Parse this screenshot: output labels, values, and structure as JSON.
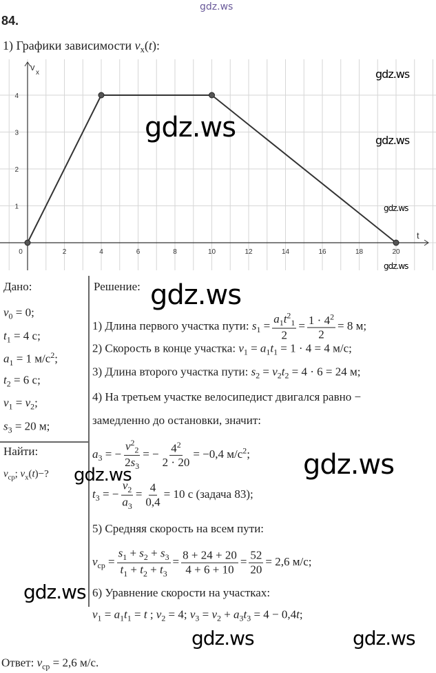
{
  "header": {
    "site": "gdz.ws",
    "number": "84.",
    "subtitle": [
      [
        "t",
        "1) Графики зависимости "
      ],
      [
        "i",
        "v"
      ],
      [
        "sub",
        "x"
      ],
      [
        "t",
        "("
      ],
      [
        "i",
        "t"
      ],
      [
        "t",
        ")"
      ],
      [
        "t",
        ":"
      ]
    ]
  },
  "chart_data": {
    "type": "line",
    "xlabel": "t",
    "ylabel": "v",
    "ylabel_sub": "x",
    "x": [
      0,
      4,
      10,
      20
    ],
    "y": [
      0,
      4,
      4,
      0
    ],
    "xlim": [
      0,
      21
    ],
    "ylim": [
      -0.7,
      4.9
    ],
    "x_ticks": [
      "0",
      "2",
      "4",
      "6",
      "8",
      "10",
      "12",
      "14",
      "16",
      "18",
      "20"
    ],
    "y_ticks": [
      "1",
      "2",
      "3",
      "4"
    ],
    "grid": true,
    "line_color": "#333333"
  },
  "given": {
    "title": "Дано:",
    "lines": [
      [
        [
          "i",
          "v"
        ],
        [
          "sub",
          "0"
        ],
        [
          "t",
          " = 0;"
        ]
      ],
      [
        [
          "i",
          "t"
        ],
        [
          "sub",
          "1"
        ],
        [
          "t",
          " = 4 с;"
        ]
      ],
      [
        [
          "i",
          "a"
        ],
        [
          "sub",
          "1"
        ],
        [
          "t",
          " = 1 м/с"
        ],
        [
          "sup",
          "2"
        ],
        [
          "t",
          ";"
        ]
      ],
      [
        [
          "i",
          "t"
        ],
        [
          "sub",
          "2"
        ],
        [
          "t",
          " = 6 с;"
        ]
      ],
      [
        [
          "i",
          "v"
        ],
        [
          "sub",
          "1"
        ],
        [
          "t",
          " = "
        ],
        [
          "i",
          "v"
        ],
        [
          "sub",
          "2"
        ],
        [
          "t",
          ";"
        ]
      ],
      [
        [
          "i",
          "s"
        ],
        [
          "sub",
          "3"
        ],
        [
          "t",
          " = 20 м;"
        ]
      ]
    ],
    "find_title": "Найти:",
    "find": [
      [
        "i",
        "v"
      ],
      [
        "sub",
        "ср"
      ],
      [
        "t",
        "; "
      ],
      [
        "i",
        "v"
      ],
      [
        "sub",
        "x"
      ],
      [
        "t",
        "("
      ],
      [
        "i",
        "t"
      ],
      [
        "t",
        ")−?"
      ]
    ]
  },
  "solution": {
    "title": "Решение:",
    "lines": [
      [
        [
          "t",
          "1) Длина первого участка пути: "
        ],
        [
          "i",
          "s"
        ],
        [
          "sub",
          "1"
        ],
        [
          "t",
          " ="
        ],
        [
          "frac",
          [
            [
              "i",
              "a"
            ],
            [
              "sub",
              "1"
            ],
            [
              "i",
              "t"
            ],
            [
              "sup",
              "2"
            ],
            [
              "sub",
              "1"
            ]
          ],
          [
            [
              "t",
              "2"
            ]
          ]
        ],
        [
          "t",
          "="
        ],
        [
          "frac",
          [
            [
              "t",
              "1 · 4"
            ],
            [
              "sup",
              "2"
            ]
          ],
          [
            [
              "t",
              "2"
            ]
          ]
        ],
        [
          "t",
          "= 8 м;"
        ]
      ],
      [
        [
          "t",
          "2) Скорость в конце участка: "
        ],
        [
          "i",
          "v"
        ],
        [
          "sub",
          "1"
        ],
        [
          "t",
          " = "
        ],
        [
          "i",
          "a"
        ],
        [
          "sub",
          "1"
        ],
        [
          "i",
          "t"
        ],
        [
          "sub",
          "1"
        ],
        [
          "t",
          " = 1 · 4 = 4 м/с;"
        ]
      ],
      [
        [
          "t",
          "3) Длина второго участка пути: "
        ],
        [
          "i",
          "s"
        ],
        [
          "sub",
          "2"
        ],
        [
          "t",
          " = "
        ],
        [
          "i",
          "v"
        ],
        [
          "sub",
          "2"
        ],
        [
          "i",
          "t"
        ],
        [
          "sub",
          "2"
        ],
        [
          "t",
          " = 4 · 6 = 24 м;"
        ]
      ],
      [
        [
          "t",
          "4) На третьем участке велосипедист двигался равно −"
        ]
      ],
      [
        [
          "t",
          "замедленно до остановки, значит:"
        ]
      ],
      [
        [
          "i",
          "a"
        ],
        [
          "sub",
          "3"
        ],
        [
          "t",
          " = −"
        ],
        [
          "frac",
          [
            [
              "i",
              "v"
            ],
            [
              "sup",
              "2"
            ],
            [
              "sub",
              "2"
            ]
          ],
          [
            [
              "t",
              "2"
            ],
            [
              "i",
              "s"
            ],
            [
              "sub",
              "3"
            ]
          ]
        ],
        [
          "t",
          "= −"
        ],
        [
          "frac",
          [
            [
              "t",
              "4"
            ],
            [
              "sup",
              "2"
            ]
          ],
          [
            [
              "t",
              "2 · 20"
            ]
          ]
        ],
        [
          "t",
          "= −0,4 м/с"
        ],
        [
          "sup",
          "2"
        ],
        [
          "t",
          ";"
        ]
      ],
      [
        [
          "i",
          "t"
        ],
        [
          "sub",
          "3"
        ],
        [
          "t",
          " = −"
        ],
        [
          "frac",
          [
            [
              "i",
              "v"
            ],
            [
              "sub",
              "2"
            ]
          ],
          [
            [
              "i",
              "a"
            ],
            [
              "sub",
              "3"
            ]
          ]
        ],
        [
          "t",
          "="
        ],
        [
          "frac",
          [
            [
              "t",
              "4"
            ]
          ],
          [
            [
              "t",
              "0,4"
            ]
          ]
        ],
        [
          "t",
          "= 10 с (задача 83);"
        ]
      ],
      [
        [
          "t",
          "5) Средняя скорость на всем пути:"
        ]
      ],
      [
        [
          "i",
          "v"
        ],
        [
          "sub",
          "ср"
        ],
        [
          "t",
          " ="
        ],
        [
          "frac",
          [
            [
              "i",
              "s"
            ],
            [
              "sub",
              "1"
            ],
            [
              "t",
              " + "
            ],
            [
              "i",
              "s"
            ],
            [
              "sub",
              "2"
            ],
            [
              "t",
              " + "
            ],
            [
              "i",
              "s"
            ],
            [
              "sub",
              "3"
            ]
          ],
          [
            [
              "i",
              "t"
            ],
            [
              "sub",
              "1"
            ],
            [
              "t",
              " + "
            ],
            [
              "i",
              "t"
            ],
            [
              "sub",
              "2"
            ],
            [
              "t",
              " + "
            ],
            [
              "i",
              "t"
            ],
            [
              "sub",
              "3"
            ]
          ]
        ],
        [
          "t",
          "="
        ],
        [
          "frac",
          [
            [
              "t",
              "8 + 24 + 20"
            ]
          ],
          [
            [
              "t",
              "4 + 6 + 10"
            ]
          ]
        ],
        [
          "t",
          "="
        ],
        [
          "frac",
          [
            [
              "t",
              "52"
            ]
          ],
          [
            [
              "t",
              "20"
            ]
          ]
        ],
        [
          "t",
          "= 2,6 м/с;"
        ]
      ],
      [
        [
          "t",
          "6) Уравнение скорости на участках:"
        ]
      ],
      [
        [
          "i",
          "v"
        ],
        [
          "sub",
          "1"
        ],
        [
          "t",
          " = "
        ],
        [
          "i",
          "a"
        ],
        [
          "sub",
          "1"
        ],
        [
          "i",
          "t"
        ],
        [
          "sub",
          "1"
        ],
        [
          "t",
          " = "
        ],
        [
          "i",
          "t"
        ],
        [
          "t",
          " ;  "
        ],
        [
          "i",
          "v"
        ],
        [
          "sub",
          "2"
        ],
        [
          "t",
          " = 4;  "
        ],
        [
          "i",
          "v"
        ],
        [
          "sub",
          "3"
        ],
        [
          "t",
          " = "
        ],
        [
          "i",
          "v"
        ],
        [
          "sub",
          "2"
        ],
        [
          "t",
          " + "
        ],
        [
          "i",
          "a"
        ],
        [
          "sub",
          "3"
        ],
        [
          "i",
          "t"
        ],
        [
          "sub",
          "3"
        ],
        [
          "t",
          " = 4 − 0,4"
        ],
        [
          "i",
          "t"
        ],
        [
          "t",
          ";"
        ]
      ]
    ]
  },
  "answer": [
    [
      "t",
      "Ответ:  "
    ],
    [
      "i",
      "v"
    ],
    [
      "sub",
      "ср"
    ],
    [
      "t",
      " = 2,6 м/с."
    ]
  ],
  "watermark": "gdz.ws"
}
